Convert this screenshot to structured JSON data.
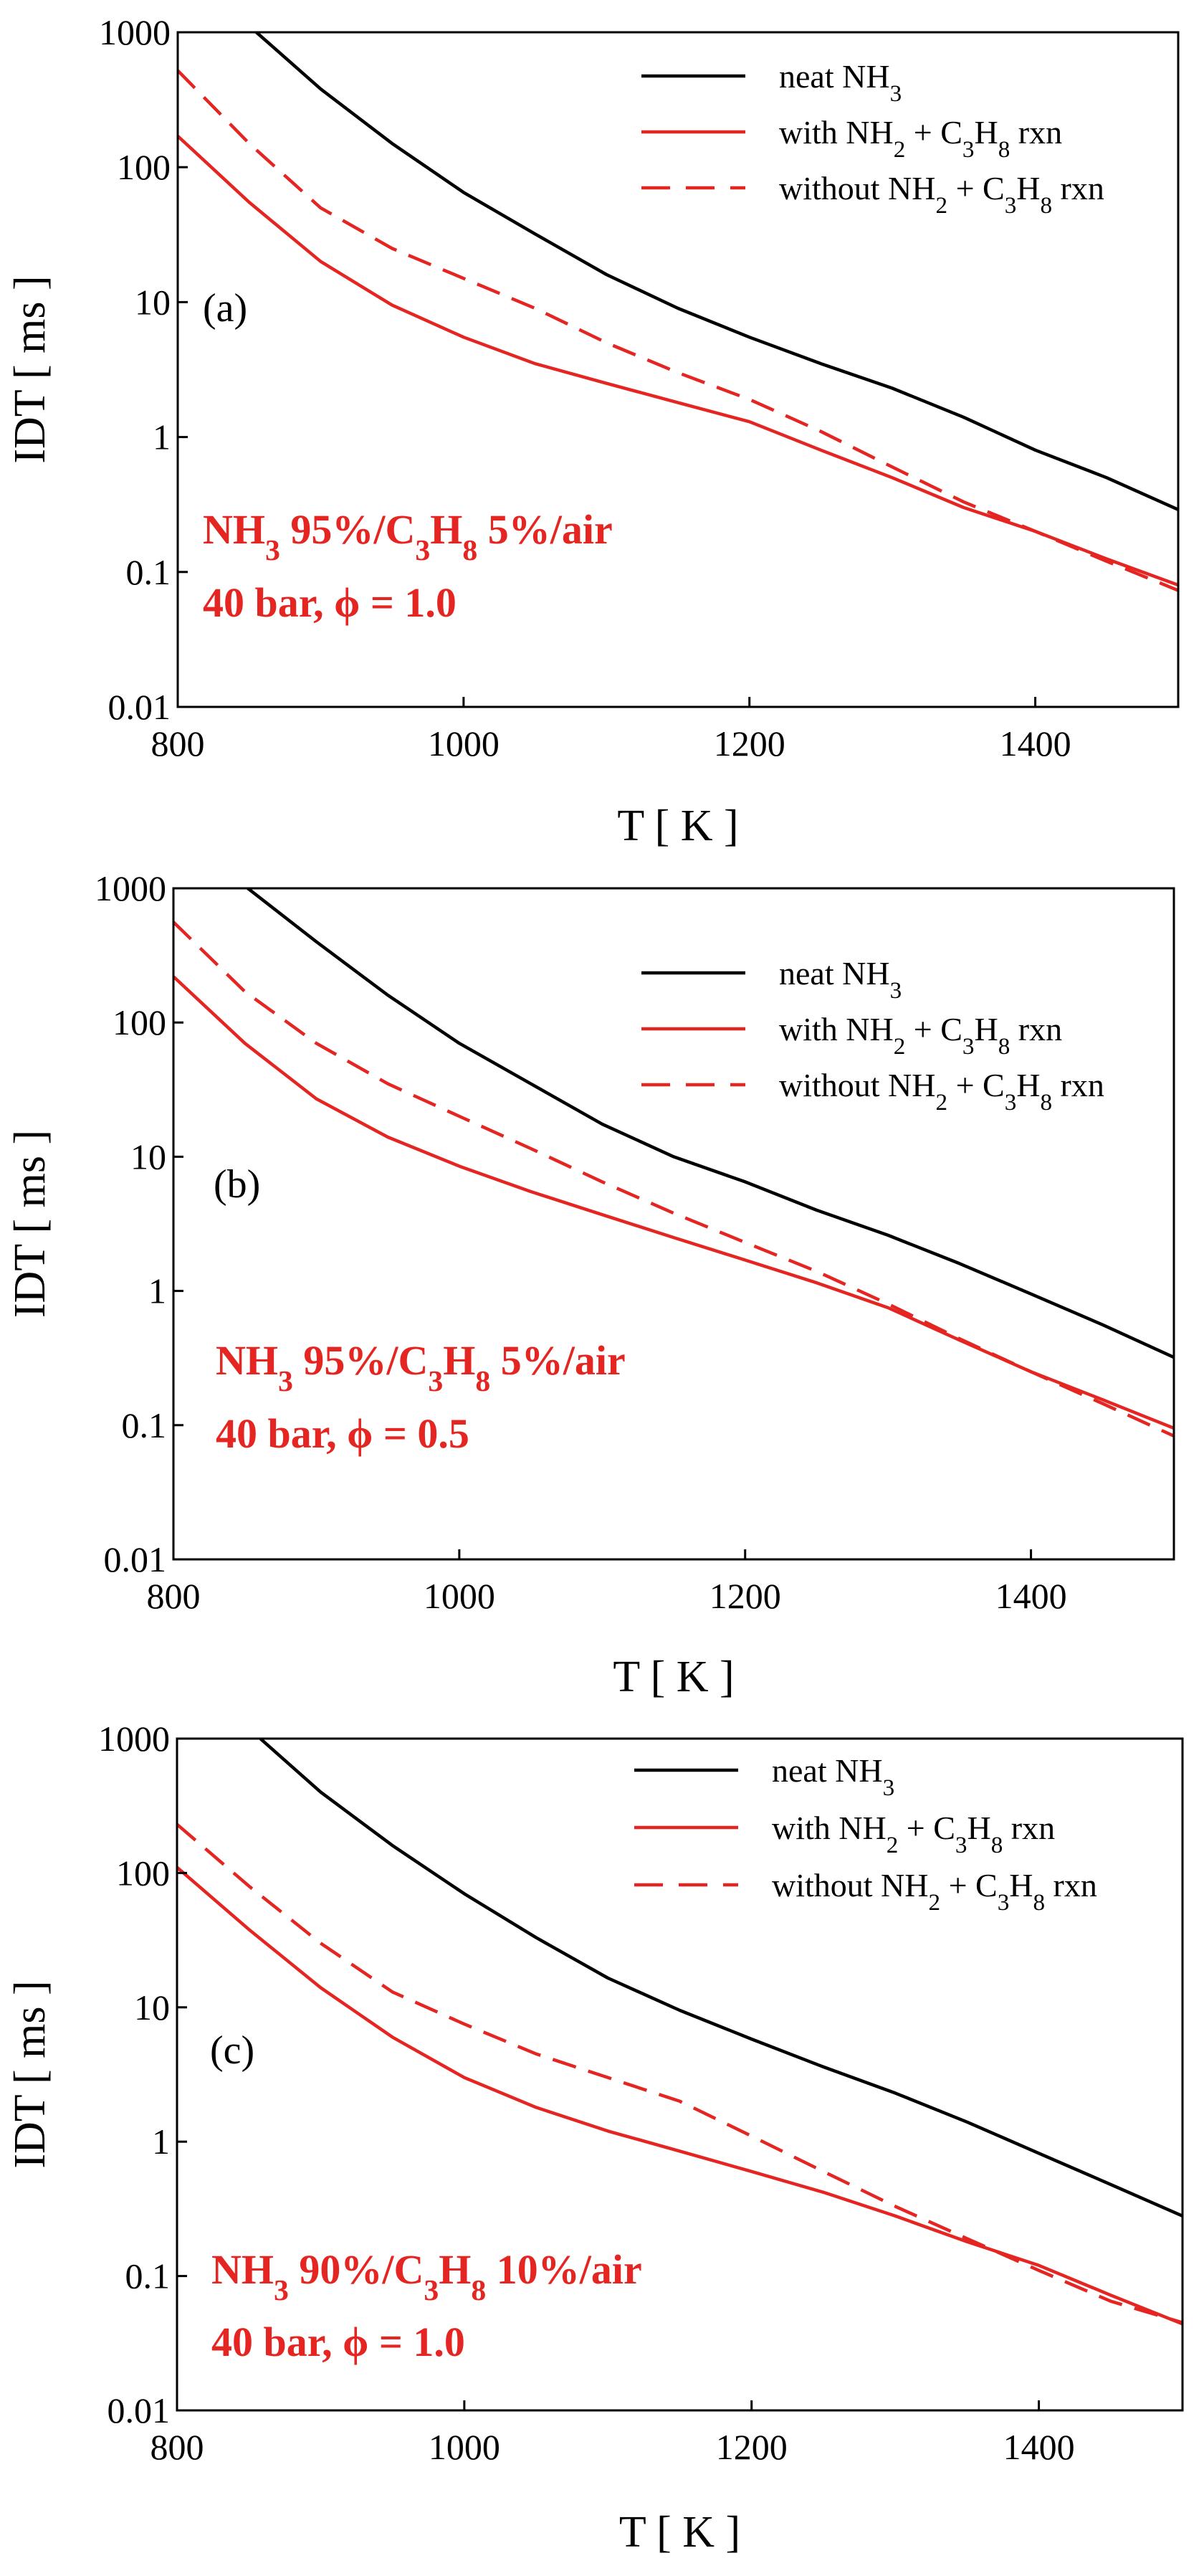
{
  "colors": {
    "black_series": "#000000",
    "red_series": "#e52521",
    "annotation": "#e52521"
  },
  "chart_data": [
    {
      "type": "line",
      "panel_label": "(a)",
      "xlabel": "T [ K ]",
      "ylabel": "IDT [ ms ]",
      "xlim": [
        800,
        1500
      ],
      "ylim": [
        0.01,
        1000
      ],
      "yscale": "log",
      "x_ticks": [
        800,
        1000,
        1200,
        1400
      ],
      "y_ticks": [
        0.01,
        0.1,
        1,
        10,
        100,
        1000
      ],
      "x_tick_labels": [
        "800",
        "1000",
        "1200",
        "1400"
      ],
      "y_tick_labels": [
        "0.01",
        "0.1",
        "1",
        "10",
        "100",
        "1000"
      ],
      "annotation": {
        "line1": {
          "a": "NH",
          "a_sub": "3",
          "b": " 95%/C",
          "b_sub": "3",
          "c": "H",
          "c_sub": "8",
          "d": " 5%/air"
        },
        "line2": "40 bar, ϕ = 1.0"
      },
      "legend": [
        {
          "parts": [
            "neat NH",
            "3",
            ""
          ],
          "style": "solid",
          "color": "#000000"
        },
        {
          "parts": [
            "with NH",
            "2",
            " + C",
            "3",
            "H",
            "8",
            " rxn"
          ],
          "style": "solid",
          "color": "#e52521"
        },
        {
          "parts": [
            "without NH",
            "2",
            " + C",
            "3",
            "H",
            "8",
            " rxn"
          ],
          "style": "dashed",
          "color": "#e52521"
        }
      ],
      "series": [
        {
          "name": "neat NH3",
          "style": "solid",
          "color": "#000000",
          "x": [
            855,
            900,
            950,
            1000,
            1050,
            1100,
            1150,
            1200,
            1250,
            1300,
            1350,
            1400,
            1450,
            1500
          ],
          "y": [
            1000,
            380,
            150,
            65,
            32,
            16,
            9,
            5.5,
            3.5,
            2.3,
            1.4,
            0.8,
            0.5,
            0.29
          ]
        },
        {
          "name": "with NH2 + C3H8 rxn",
          "style": "solid",
          "color": "#e52521",
          "x": [
            800,
            850,
            900,
            950,
            1000,
            1050,
            1100,
            1150,
            1200,
            1250,
            1300,
            1350,
            1400,
            1450,
            1500
          ],
          "y": [
            170,
            55,
            20,
            9.5,
            5.5,
            3.5,
            2.5,
            1.8,
            1.3,
            0.8,
            0.5,
            0.3,
            0.2,
            0.125,
            0.08
          ]
        },
        {
          "name": "without NH2 + C3H8 rxn",
          "style": "dashed",
          "color": "#e52521",
          "x": [
            800,
            850,
            900,
            950,
            1000,
            1050,
            1100,
            1150,
            1200,
            1250,
            1300,
            1350,
            1400,
            1450,
            1500
          ],
          "y": [
            520,
            150,
            50,
            25,
            15,
            9,
            5,
            3,
            1.9,
            1.1,
            0.6,
            0.33,
            0.2,
            0.12,
            0.073
          ]
        }
      ]
    },
    {
      "type": "line",
      "panel_label": "(b)",
      "xlabel": "T [ K ]",
      "ylabel": "IDT [ ms ]",
      "xlim": [
        800,
        1500
      ],
      "ylim": [
        0.01,
        1000
      ],
      "yscale": "log",
      "x_ticks": [
        800,
        1000,
        1200,
        1400
      ],
      "y_ticks": [
        0.01,
        0.1,
        1,
        10,
        100,
        1000
      ],
      "x_tick_labels": [
        "800",
        "1000",
        "1200",
        "1400"
      ],
      "y_tick_labels": [
        "0.01",
        "0.1",
        "1",
        "10",
        "100",
        "1000"
      ],
      "annotation": {
        "line1": {
          "a": "NH",
          "a_sub": "3",
          "b": " 95%/C",
          "b_sub": "3",
          "c": "H",
          "c_sub": "8",
          "d": " 5%/air"
        },
        "line2": "40 bar, ϕ = 0.5"
      },
      "legend": [
        {
          "parts": [
            "neat NH",
            "3",
            ""
          ],
          "style": "solid",
          "color": "#000000"
        },
        {
          "parts": [
            "with NH",
            "2",
            " + C",
            "3",
            "H",
            "8",
            " rxn"
          ],
          "style": "solid",
          "color": "#e52521"
        },
        {
          "parts": [
            "without NH",
            "2",
            " + C",
            "3",
            "H",
            "8",
            " rxn"
          ],
          "style": "dashed",
          "color": "#e52521"
        }
      ],
      "series": [
        {
          "name": "neat NH3",
          "style": "solid",
          "color": "#000000",
          "x": [
            852,
            900,
            950,
            1000,
            1050,
            1100,
            1150,
            1200,
            1250,
            1300,
            1350,
            1400,
            1450,
            1500
          ],
          "y": [
            1000,
            400,
            160,
            70,
            35,
            17.5,
            10,
            6.5,
            4,
            2.6,
            1.6,
            0.95,
            0.56,
            0.32
          ]
        },
        {
          "name": "with NH2 + C3H8 rxn",
          "style": "solid",
          "color": "#e52521",
          "x": [
            800,
            850,
            900,
            950,
            1000,
            1050,
            1100,
            1150,
            1200,
            1250,
            1300,
            1350,
            1400,
            1450,
            1500
          ],
          "y": [
            220,
            70,
            27,
            14,
            8.5,
            5.5,
            3.7,
            2.5,
            1.7,
            1.15,
            0.75,
            0.43,
            0.25,
            0.155,
            0.095
          ]
        },
        {
          "name": "without NH2 + C3H8 rxn",
          "style": "dashed",
          "color": "#e52521",
          "x": [
            800,
            850,
            900,
            950,
            1000,
            1050,
            1100,
            1150,
            1200,
            1250,
            1300,
            1350,
            1400,
            1450,
            1500
          ],
          "y": [
            560,
            170,
            70,
            35,
            20,
            11.5,
            6.5,
            3.8,
            2.3,
            1.4,
            0.8,
            0.44,
            0.25,
            0.145,
            0.083
          ]
        }
      ]
    },
    {
      "type": "line",
      "panel_label": "(c)",
      "xlabel": "T [ K ]",
      "ylabel": "IDT [ ms ]",
      "xlim": [
        800,
        1500
      ],
      "ylim": [
        0.01,
        1000
      ],
      "yscale": "log",
      "x_ticks": [
        800,
        1000,
        1200,
        1400
      ],
      "y_ticks": [
        0.01,
        0.1,
        1,
        10,
        100,
        1000
      ],
      "x_tick_labels": [
        "800",
        "1000",
        "1200",
        "1400"
      ],
      "y_tick_labels": [
        "0.01",
        "0.1",
        "1",
        "10",
        "100",
        "1000"
      ],
      "annotation": {
        "line1": {
          "a": "NH",
          "a_sub": "3",
          "b": " 90%/C",
          "b_sub": "3",
          "c": "H",
          "c_sub": "8",
          "d": " 10%/air"
        },
        "line2": "40 bar, ϕ = 1.0"
      },
      "legend": [
        {
          "parts": [
            "neat NH",
            "3",
            ""
          ],
          "style": "solid",
          "color": "#000000"
        },
        {
          "parts": [
            "with NH",
            "2",
            " + C",
            "3",
            "H",
            "8",
            " rxn"
          ],
          "style": "solid",
          "color": "#e52521"
        },
        {
          "parts": [
            "without NH",
            "2",
            " + C",
            "3",
            "H",
            "8",
            " rxn"
          ],
          "style": "dashed",
          "color": "#e52521"
        }
      ],
      "series": [
        {
          "name": "neat NH3",
          "style": "solid",
          "color": "#000000",
          "x": [
            858,
            900,
            950,
            1000,
            1050,
            1100,
            1150,
            1200,
            1250,
            1300,
            1350,
            1400,
            1450,
            1500
          ],
          "y": [
            1000,
            400,
            160,
            70,
            33,
            16.5,
            9.5,
            5.8,
            3.6,
            2.3,
            1.4,
            0.82,
            0.48,
            0.28
          ]
        },
        {
          "name": "with NH2 + C3H8 rxn",
          "style": "solid",
          "color": "#e52521",
          "x": [
            800,
            850,
            900,
            950,
            1000,
            1050,
            1100,
            1150,
            1200,
            1250,
            1300,
            1350,
            1400,
            1450,
            1500
          ],
          "y": [
            110,
            38,
            14,
            6,
            3,
            1.8,
            1.2,
            0.85,
            0.6,
            0.42,
            0.28,
            0.18,
            0.12,
            0.072,
            0.044
          ]
        },
        {
          "name": "without NH2 + C3H8 rxn",
          "style": "dashed",
          "color": "#e52521",
          "x": [
            800,
            850,
            900,
            950,
            1000,
            1050,
            1100,
            1150,
            1200,
            1250,
            1300,
            1350,
            1400,
            1450,
            1500
          ],
          "y": [
            230,
            80,
            30,
            13,
            7.5,
            4.5,
            3,
            2,
            1.1,
            0.6,
            0.33,
            0.19,
            0.11,
            0.065,
            0.045
          ]
        }
      ]
    }
  ]
}
